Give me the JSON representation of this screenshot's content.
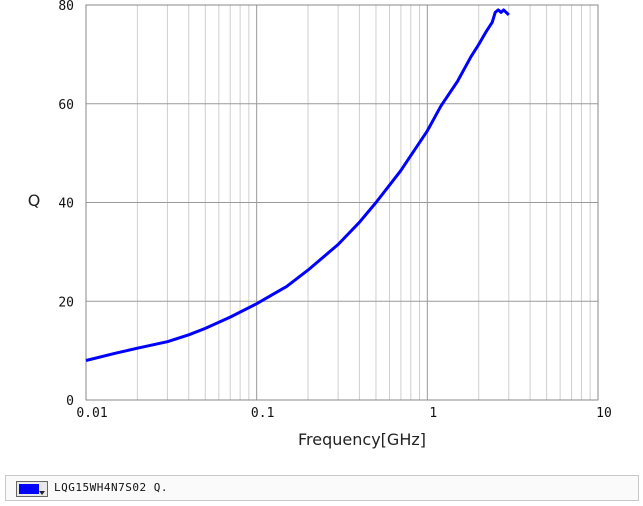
{
  "chart_data": {
    "type": "line",
    "title": "",
    "xlabel": "Frequency[GHz]",
    "ylabel": "Q",
    "x_scale": "log",
    "xlim": [
      0.01,
      10
    ],
    "ylim": [
      0,
      80
    ],
    "x_ticks": [
      "0.01",
      "0.1",
      "1",
      "10"
    ],
    "y_ticks": [
      "0",
      "20",
      "40",
      "60",
      "80"
    ],
    "grid": true,
    "series": [
      {
        "name": "LQG15WH4N7S02 Q.",
        "color": "#0000ff",
        "x": [
          0.01,
          0.015,
          0.02,
          0.03,
          0.04,
          0.05,
          0.07,
          0.1,
          0.15,
          0.2,
          0.3,
          0.4,
          0.5,
          0.6,
          0.7,
          0.8,
          1.0,
          1.2,
          1.5,
          1.8,
          2.0,
          2.2,
          2.4,
          2.5,
          2.6,
          2.7,
          2.8,
          3.0
        ],
        "y": [
          8.0,
          9.5,
          10.5,
          11.8,
          13.2,
          14.5,
          16.8,
          19.5,
          23.0,
          26.3,
          31.5,
          36.0,
          40.0,
          43.5,
          46.5,
          49.5,
          54.5,
          59.5,
          64.5,
          69.5,
          72.0,
          74.5,
          76.5,
          78.5,
          79.0,
          78.5,
          79.0,
          78.0
        ]
      }
    ]
  },
  "legend": {
    "label": "LQG15WH4N7S02 Q.",
    "swatch_color": "#0000ff"
  }
}
